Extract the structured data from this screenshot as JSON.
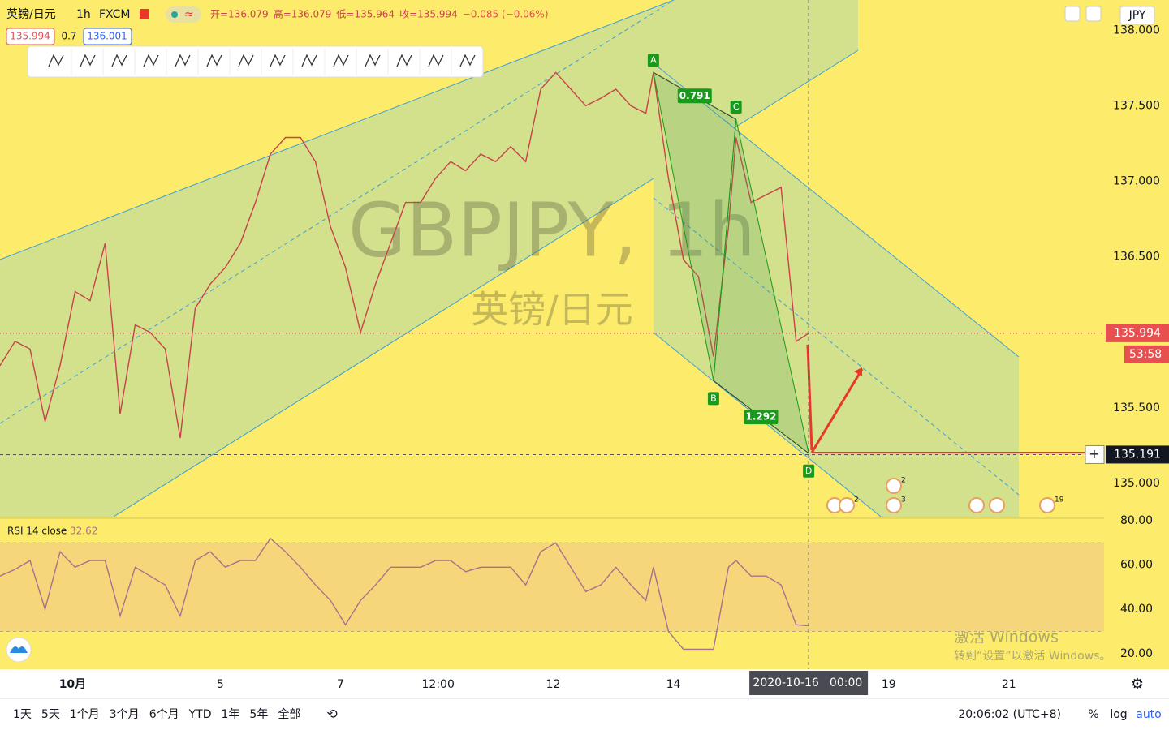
{
  "header": {
    "symbol": "英镑/日元",
    "interval": "1h",
    "exchange": "FXCM",
    "ohlc": [
      "开=136.079",
      "高=136.079",
      "低=135.964",
      "收=135.994",
      "−0.085 (−0.06%)"
    ],
    "bid": "135.994",
    "spread": "0.7",
    "ask": "136.001",
    "currency": "JPY"
  },
  "watermark": {
    "ticker": "GBPJPY, 1h",
    "name": "英镑/日元"
  },
  "chart_data": [
    {
      "type": "line",
      "x": [
        0,
        6,
        12,
        18,
        24,
        30,
        36,
        42,
        48,
        54,
        60,
        66,
        72,
        78,
        84,
        90,
        96,
        102,
        108,
        114,
        120,
        126,
        132,
        138,
        144,
        150,
        156,
        162,
        168,
        174,
        180,
        186,
        192,
        198,
        204,
        210,
        216,
        222,
        228,
        234,
        240,
        246,
        252,
        258,
        261,
        267,
        273,
        279,
        285,
        291,
        294,
        300,
        306,
        312,
        318,
        323
      ],
      "series": [
        {
          "color": "#c8424a",
          "values": [
            135.78,
            135.94,
            135.89,
            135.41,
            135.78,
            136.27,
            136.21,
            136.59,
            135.46,
            136.05,
            136.0,
            135.89,
            135.3,
            136.16,
            136.32,
            136.43,
            136.59,
            136.86,
            137.18,
            137.29,
            137.29,
            137.13,
            136.7,
            136.43,
            136.0,
            136.32,
            136.59,
            136.86,
            136.86,
            137.02,
            137.13,
            137.07,
            137.18,
            137.13,
            137.23,
            137.13,
            137.61,
            137.72,
            137.61,
            137.5,
            137.55,
            137.61,
            137.5,
            137.45,
            137.72,
            137.02,
            136.48,
            136.37,
            135.84,
            136.7,
            137.29,
            136.86,
            136.91,
            136.96,
            135.94,
            135.994
          ]
        }
      ],
      "xlim": [
        0,
        441
      ],
      "ylim": [
        134.78,
        138.2
      ],
      "yticks": [
        {
          "value": 135,
          "label": "135.000"
        },
        {
          "value": 135.5,
          "label": "135.500"
        },
        {
          "value": 136.5,
          "label": "136.500"
        },
        {
          "value": 137,
          "label": "137.000"
        },
        {
          "value": 137.5,
          "label": "137.500"
        },
        {
          "value": 138,
          "label": "138.000"
        }
      ],
      "xticks": [
        {
          "value": 29,
          "label": "10月"
        },
        {
          "value": 88,
          "label": "5"
        },
        {
          "value": 136,
          "label": "7"
        },
        {
          "value": 175,
          "label": "12:00"
        },
        {
          "value": 221,
          "label": "12"
        },
        {
          "value": 269,
          "label": "14"
        },
        {
          "value": 355,
          "label": "19"
        },
        {
          "value": 403,
          "label": "21"
        }
      ],
      "grid": false,
      "last_price": 135.994,
      "countdown": "53:58",
      "crosshair": {
        "x": 323,
        "price": 135.191,
        "date": "2020-10-16",
        "time": "00:00"
      },
      "pattern": {
        "color": "#1a9a1a",
        "points": [
          {
            "label": "A",
            "x": 261,
            "y": 137.72
          },
          {
            "label": "B",
            "x": 285,
            "y": 135.68
          },
          {
            "label": "C",
            "x": 294,
            "y": 137.41
          },
          {
            "label": "D",
            "x": 323,
            "y": 135.2
          }
        ],
        "ratios": [
          0.791,
          1.292
        ]
      }
    },
    {
      "type": "line",
      "title": "RSI 14 close",
      "last": 32.62,
      "x": [
        0,
        6,
        12,
        18,
        24,
        30,
        36,
        42,
        48,
        54,
        60,
        66,
        72,
        78,
        84,
        90,
        96,
        102,
        108,
        114,
        120,
        126,
        132,
        138,
        144,
        150,
        156,
        162,
        168,
        174,
        180,
        186,
        192,
        198,
        204,
        210,
        216,
        222,
        228,
        234,
        240,
        246,
        252,
        258,
        261,
        267,
        273,
        279,
        285,
        291,
        294,
        300,
        306,
        312,
        318,
        323
      ],
      "series": [
        {
          "color": "#a8708c",
          "values": [
            55,
            58,
            62,
            40,
            66,
            59,
            62,
            62,
            37,
            59,
            55,
            51,
            37,
            62,
            66,
            59,
            62,
            62,
            72,
            66,
            59,
            51,
            44,
            33,
            44,
            51,
            59,
            59,
            59,
            62,
            62,
            57,
            59,
            59,
            59,
            51,
            66,
            70,
            59,
            48,
            51,
            59,
            51,
            44,
            59,
            30,
            22,
            22,
            22,
            59,
            62,
            55,
            55,
            51,
            33,
            32.62
          ]
        }
      ],
      "xlim": [
        0,
        441
      ],
      "ylim": [
        13,
        80.7
      ],
      "yticks": [
        {
          "value": 20,
          "label": "20.00"
        },
        {
          "value": 40,
          "label": "40.00"
        },
        {
          "value": 60,
          "label": "60.00"
        },
        {
          "value": 80,
          "label": "80.00"
        }
      ],
      "band": [
        30,
        70
      ],
      "grid": false
    }
  ],
  "event_badges": [
    2,
    3,
    2,
    19
  ],
  "footer": {
    "ranges": [
      "1天",
      "5天",
      "1个月",
      "3个月",
      "6个月",
      "YTD",
      "1年",
      "5年",
      "全部"
    ],
    "clock": "20:06:02 (UTC+8)",
    "options": [
      "%",
      "log",
      "auto"
    ]
  },
  "windows_notice": [
    "激活 Windows",
    "转到“设置”以激活 Windows。"
  ]
}
